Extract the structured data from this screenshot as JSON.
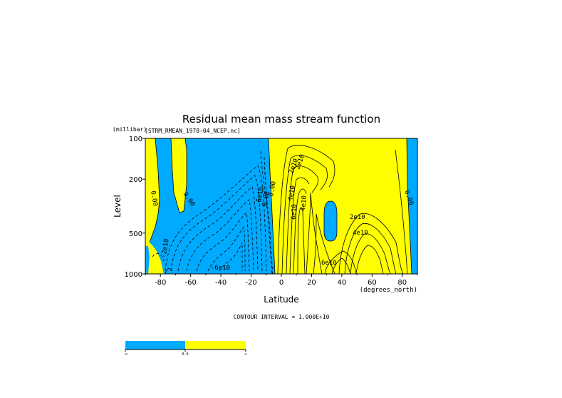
{
  "chart_data": {
    "type": "contour",
    "title": "Residual mean mass stream function",
    "subtitle": "[STRM_RMEAN_1978-04_NCEP.nc]",
    "xlabel": "Latitude",
    "xunits": "(degrees_north)",
    "ylabel": "Level",
    "yunits": "(millibar)",
    "xlim": [
      -90,
      90
    ],
    "ylim": [
      1000,
      100
    ],
    "yscale": "log",
    "xticks": [
      "-80",
      "-60",
      "-40",
      "-20",
      "0",
      "20",
      "40",
      "60",
      "80"
    ],
    "xtick_values": [
      -80,
      -60,
      -40,
      -20,
      0,
      20,
      40,
      60,
      80
    ],
    "yticks": [
      "100",
      "200",
      "500",
      "1000"
    ],
    "ytick_values": [
      100,
      200,
      500,
      1000
    ],
    "contour_interval_text": "CONTOUR INTERVAL = 1.000E+10",
    "contour_labels": [
      "0.00",
      "0.00",
      "0.00",
      "0.00",
      "0.00",
      "2e10",
      "4e10",
      "6e10",
      "6e10",
      "2e10",
      "4e10",
      "6e10",
      "4e10",
      "2e10",
      "-2e10",
      "-6e10"
    ],
    "fill_colors": {
      "negative": "#00aaff",
      "positive": "#ffff00"
    },
    "colorbar": {
      "labels": [
        "-∞",
        "0.0",
        "∞"
      ],
      "colors": [
        "#00aaff",
        "#ffff00"
      ]
    },
    "annotations": {
      "max_text": "",
      "min_text": ""
    }
  }
}
